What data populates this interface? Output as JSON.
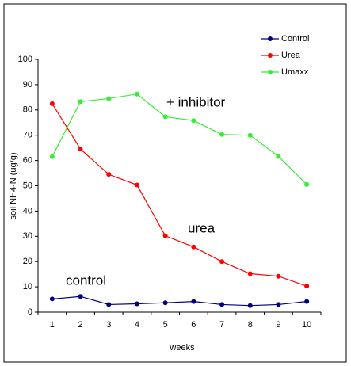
{
  "chart_data": {
    "type": "line",
    "categories": [
      "1",
      "2",
      "3",
      "4",
      "5",
      "6",
      "7",
      "8",
      "9",
      "10"
    ],
    "series": [
      {
        "name": "Control",
        "color": "#000080",
        "values": [
          5.2,
          6.2,
          3,
          3.3,
          3.7,
          4.2,
          3,
          2.6,
          3,
          4.2
        ]
      },
      {
        "name": "Urea",
        "color": "#ff0000",
        "values": [
          82.5,
          64.5,
          54.5,
          50.3,
          30.2,
          25.8,
          20,
          15.2,
          14.2,
          10.3
        ]
      },
      {
        "name": "Umaxx",
        "color": "#33ee33",
        "values": [
          61.5,
          83.3,
          84.5,
          86.3,
          77.3,
          75.8,
          70.3,
          70,
          61.6,
          50.5
        ]
      }
    ],
    "ylim": [
      0,
      100
    ],
    "yticks": [
      0,
      10,
      20,
      30,
      40,
      50,
      60,
      70,
      80,
      90,
      100
    ],
    "xlabel": "weeks",
    "ylabel": "soil NH4-N (ug/g)",
    "annotations": [
      "+ inhibitor",
      "urea",
      "control"
    ],
    "legend": "top-right"
  }
}
